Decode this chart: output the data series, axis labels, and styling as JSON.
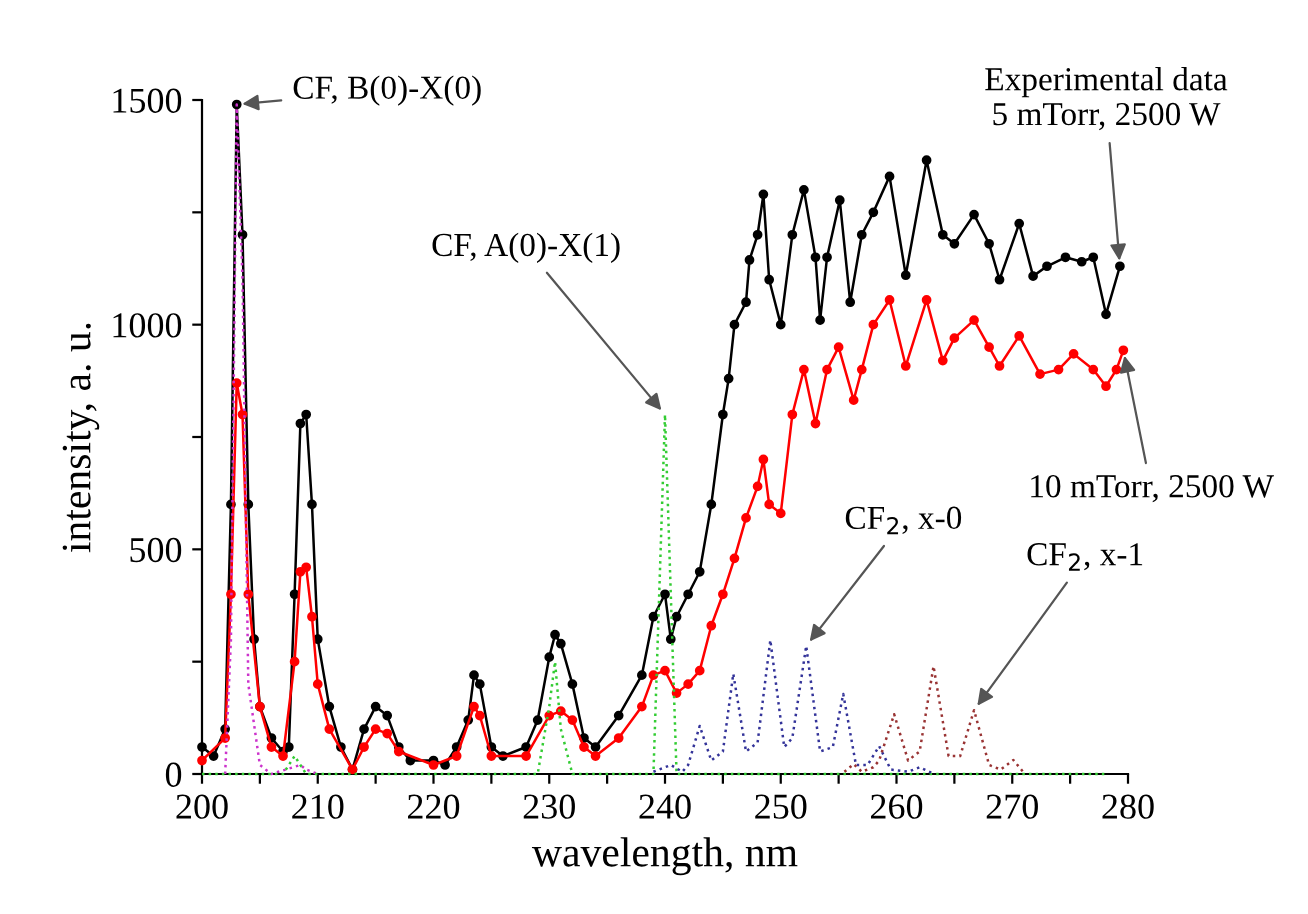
{
  "chart_data": {
    "type": "line",
    "xlabel": "wavelength, nm",
    "ylabel": "intensity, a. u.",
    "xlim": [
      200,
      280
    ],
    "ylim": [
      0,
      1500
    ],
    "xticks": [
      200,
      {
        "value": 205,
        "label": null
      },
      210,
      {
        "value": 215,
        "label": null
      },
      220,
      {
        "value": 225,
        "label": null
      },
      230,
      {
        "value": 235,
        "label": null
      },
      240,
      {
        "value": 245,
        "label": null
      },
      250,
      {
        "value": 255,
        "label": null
      },
      260,
      {
        "value": 265,
        "label": null
      },
      270,
      {
        "value": 275,
        "label": null
      },
      280
    ],
    "yticks": [
      0,
      {
        "value": 250,
        "label": null
      },
      500,
      {
        "value": 750,
        "label": null
      },
      1000,
      {
        "value": 1250,
        "label": null
      },
      1500
    ],
    "grid": false,
    "legend": false,
    "series": [
      {
        "color": "#000000",
        "marker": "circle",
        "line_style": "solid",
        "x": [
          200,
          201,
          202,
          202.5,
          203,
          203.5,
          204,
          204.5,
          205,
          206,
          207,
          207.5,
          208,
          208.5,
          209,
          209.5,
          210,
          211,
          212,
          213,
          214,
          215,
          216,
          217,
          218,
          220,
          221,
          222,
          223,
          223.5,
          224,
          225,
          226,
          228,
          229,
          230,
          230.5,
          231,
          232,
          233,
          234,
          236,
          238,
          239,
          240,
          240.5,
          241,
          242,
          243,
          244,
          245,
          245.5,
          246,
          247,
          247.3,
          248,
          248.5,
          249,
          250,
          251,
          252,
          253,
          253.4,
          254,
          255.1,
          256,
          257,
          258,
          259.4,
          260.8,
          262.6,
          264,
          265,
          266.7,
          268,
          268.9,
          270.6,
          271.8,
          273,
          274.6,
          276,
          277,
          278.1,
          279.3
        ],
        "values": [
          60,
          40,
          100,
          600,
          1490,
          1200,
          600,
          300,
          150,
          80,
          50,
          60,
          400,
          780,
          800,
          600,
          300,
          150,
          60,
          10,
          100,
          150,
          130,
          60,
          30,
          30,
          20,
          60,
          120,
          220,
          200,
          60,
          40,
          60,
          120,
          260,
          310,
          290,
          200,
          80,
          60,
          130,
          220,
          350,
          400,
          300,
          350,
          400,
          450,
          600,
          800,
          880,
          1000,
          1050,
          1144,
          1200,
          1290,
          1100,
          1000,
          1200,
          1300,
          1150,
          1010,
          1150,
          1277,
          1050,
          1200,
          1250,
          1330,
          1110,
          1366,
          1200,
          1180,
          1245,
          1180,
          1100,
          1225,
          1108,
          1130,
          1150,
          1140,
          1150,
          1023,
          1130
        ]
      },
      {
        "color": "#ff0000",
        "marker": "circle",
        "line_style": "solid",
        "x": [
          200,
          202,
          202.5,
          203,
          203.5,
          204,
          205,
          206,
          207,
          208,
          208.5,
          209,
          209.5,
          210,
          211,
          213,
          214,
          215,
          216,
          217,
          220,
          222,
          223.5,
          224,
          225,
          228,
          230,
          231,
          232,
          233,
          234,
          236,
          238,
          239,
          240,
          241,
          242,
          243,
          244,
          245,
          246,
          247,
          248,
          248.5,
          249,
          250,
          251,
          252,
          253,
          254,
          255,
          256.3,
          257,
          258,
          259.4,
          260.8,
          262.6,
          264,
          265,
          266.7,
          268,
          268.9,
          270.6,
          272.4,
          274,
          275.3,
          277,
          278.1,
          279,
          279.6
        ],
        "values": [
          30,
          80,
          400,
          870,
          800,
          400,
          150,
          60,
          40,
          250,
          450,
          460,
          350,
          200,
          100,
          10,
          60,
          100,
          90,
          50,
          20,
          40,
          150,
          130,
          40,
          40,
          130,
          140,
          120,
          60,
          40,
          80,
          150,
          220,
          230,
          180,
          200,
          230,
          330,
          400,
          480,
          570,
          640,
          700,
          600,
          580,
          800,
          900,
          780,
          900,
          950,
          832,
          900,
          1000,
          1055,
          908,
          1055,
          920,
          970,
          1010,
          950,
          908,
          975,
          890,
          900,
          935,
          900,
          863,
          900,
          943
        ]
      },
      {
        "color": "#cc33cc",
        "marker": "none",
        "line_style": "dotted",
        "x": [
          202,
          202.5,
          203,
          203.5,
          204,
          205,
          206,
          208.5,
          209,
          210
        ],
        "values": [
          0,
          300,
          1490,
          1100,
          200,
          20,
          0,
          20,
          10,
          0
        ]
      },
      {
        "color": "#33cc33",
        "marker": "none",
        "line_style": "dotted",
        "x": [
          200,
          207,
          208,
          208.5,
          209,
          229,
          230,
          230.5,
          231,
          232,
          239,
          239.5,
          240,
          240.5,
          241,
          278
        ],
        "values": [
          0,
          0,
          40,
          20,
          0,
          0,
          150,
          250,
          100,
          0,
          0,
          400,
          800,
          400,
          0,
          0
        ]
      },
      {
        "color": "#333399",
        "marker": "none",
        "line_style": "dotted",
        "x": [
          239,
          240.5,
          241.5,
          242,
          243,
          244,
          245,
          245.9,
          247,
          248,
          249.1,
          250.3,
          251,
          252.2,
          253.4,
          254.5,
          255.4,
          256.5,
          257.5,
          258.5,
          259.5,
          261,
          262,
          263
        ],
        "values": [
          5,
          20,
          5,
          20,
          107,
          30,
          50,
          223,
          50,
          70,
          298,
          60,
          80,
          285,
          50,
          60,
          178,
          20,
          20,
          62,
          10,
          5,
          15,
          3
        ]
      },
      {
        "color": "#993333",
        "marker": "none",
        "line_style": "dotted",
        "x": [
          255.5,
          256.3,
          257,
          258,
          258.5,
          259.8,
          261,
          262,
          263.2,
          264.5,
          265.5,
          266.7,
          268,
          269,
          270.1,
          271
        ],
        "values": [
          5,
          22,
          5,
          15,
          30,
          133,
          30,
          50,
          240,
          40,
          40,
          142,
          20,
          10,
          31,
          3
        ]
      }
    ],
    "annotations": [
      {
        "text": "CF, B(0)-X(0)",
        "x": 203,
        "y": 1490
      },
      {
        "text": "CF, A(0)-X(1)",
        "x": 240,
        "y": 800
      },
      {
        "text": "CF$_{2}$, x-0",
        "x": 252.2,
        "y": 285
      },
      {
        "text": "CF$_{2}$, x-1",
        "x": 266.7,
        "y": 142
      },
      {
        "text": "Experimental data\n5 mTorr, 2500 W",
        "x": 279.3,
        "y": 1130
      },
      {
        "text": "10 mTorr, 2500 W",
        "x": 279.6,
        "y": 943
      }
    ]
  }
}
